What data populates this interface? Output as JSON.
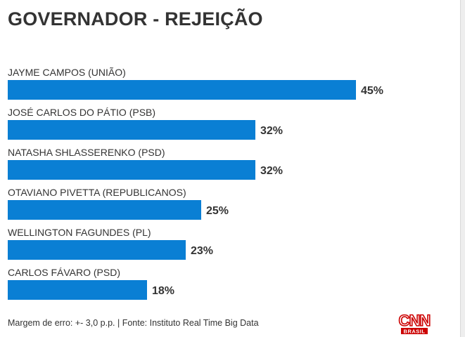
{
  "title": "GOVERNADOR - REJEIÇÃO",
  "footer": "Margem de erro: +- 3,0 p.p. | Fonte: Instituto Real Time Big Data",
  "logo": {
    "text": "CNN",
    "subtext": "BRASIL",
    "color": "#cc0000"
  },
  "colors": {
    "bar": "#0a7fd4",
    "text": "#333333"
  },
  "chart_data": {
    "type": "bar",
    "orientation": "horizontal",
    "title": "GOVERNADOR - REJEIÇÃO",
    "categories": [
      "JAYME CAMPOS (UNIÃO)",
      "JOSÉ CARLOS DO PÁTIO (PSB)",
      "NATASHA SHLASSERENKO (PSD)",
      "OTAVIANO PIVETTA (REPUBLICANOS)",
      "WELLINGTON FAGUNDES (PL)",
      "CARLOS FÁVARO (PSD)"
    ],
    "values": [
      45,
      32,
      32,
      25,
      23,
      18
    ],
    "value_labels": [
      "45%",
      "32%",
      "32%",
      "25%",
      "23%",
      "18%"
    ],
    "unit": "%",
    "grid": false,
    "legend": "none"
  }
}
